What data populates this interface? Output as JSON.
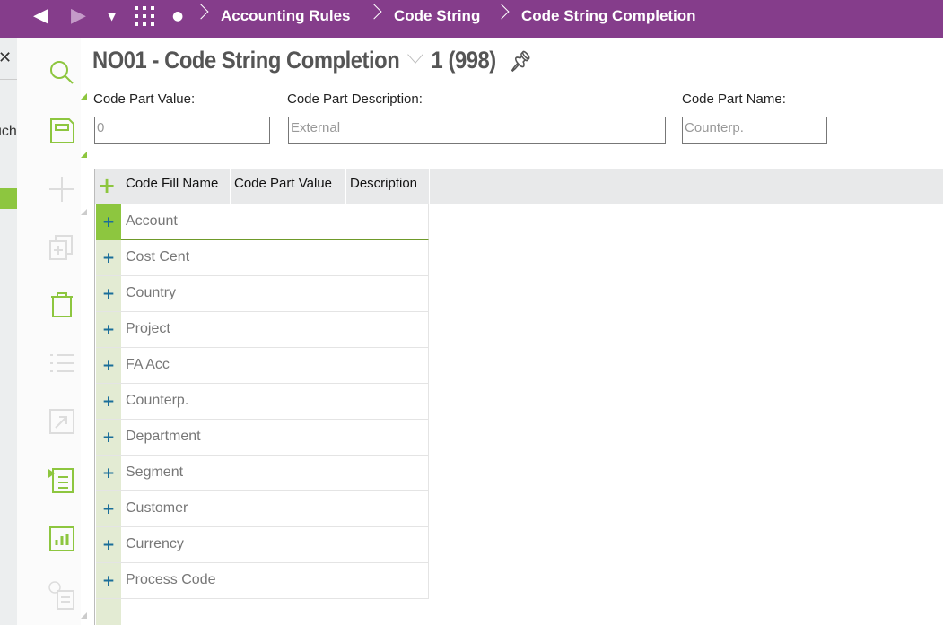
{
  "nav": {
    "breadcrumbs": [
      "Accounting Rules",
      "Code String",
      "Code String Completion"
    ]
  },
  "left": {
    "close": "✕",
    "partial_text": "uch"
  },
  "header": {
    "title": "NO01 - Code String Completion",
    "record": "1 (998)"
  },
  "form": {
    "code_part_value_label": "Code Part Value:",
    "code_part_value": "0",
    "code_part_description_label": "Code Part Description:",
    "code_part_description": "External",
    "code_part_name_label": "Code Part Name:",
    "code_part_name": "Counterp."
  },
  "table": {
    "columns": [
      "Code Fill Name",
      "Code Part Value",
      "Description"
    ],
    "rows": [
      "Account",
      "Cost Cent",
      "Country",
      "Project",
      "FA Acc",
      "Counterp.",
      "Department",
      "Segment",
      "Customer",
      "Currency",
      "Process Code"
    ],
    "selected_row": 0
  },
  "colors": {
    "brand": "#853d8b",
    "accent": "#8dc63f",
    "plus": "#1a6e9a"
  }
}
